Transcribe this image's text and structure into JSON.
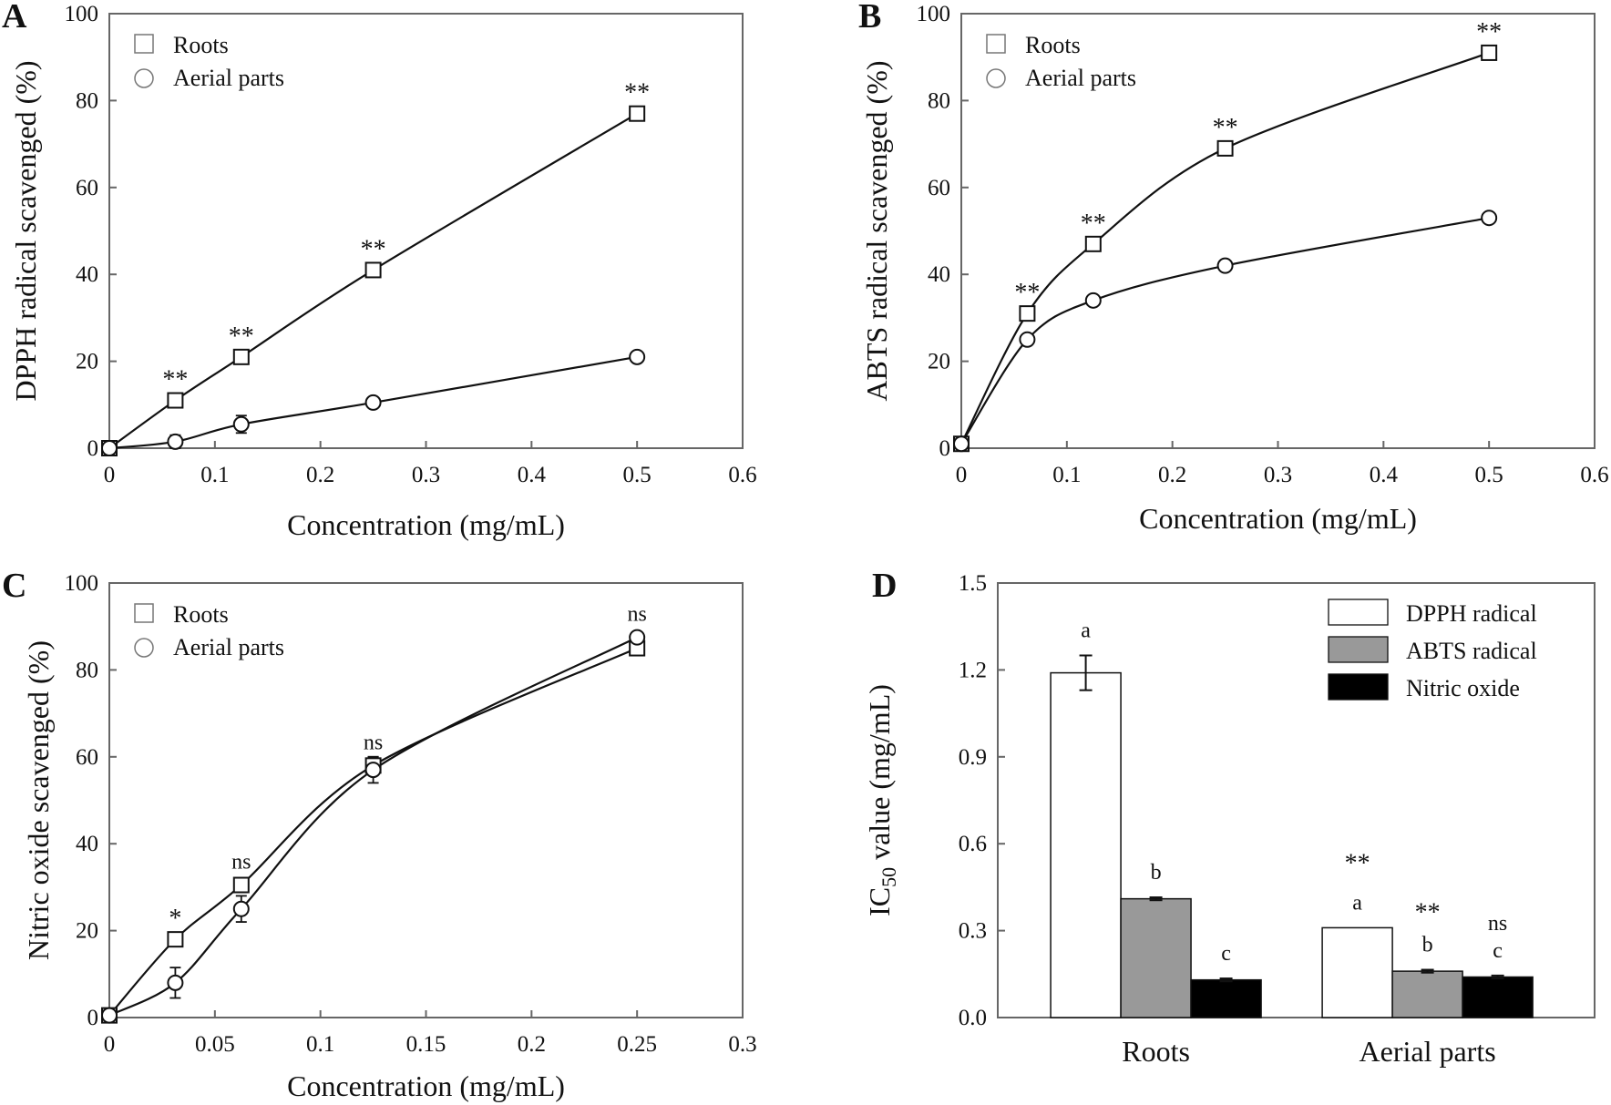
{
  "chart_data": [
    {
      "panel": "A",
      "type": "line",
      "xlabel": "Concentration (mg/mL)",
      "ylabel": "DPPH radical scavenged (%)",
      "xlim": [
        0,
        0.6
      ],
      "ylim": [
        0,
        100
      ],
      "xticks": [
        "0",
        "0.1",
        "0.2",
        "0.3",
        "0.4",
        "0.5",
        "0.6"
      ],
      "yticks": [
        "0",
        "20",
        "40",
        "60",
        "80",
        "100"
      ],
      "series": [
        {
          "name": "Roots",
          "marker": "square",
          "x": [
            0,
            0.0625,
            0.125,
            0.25,
            0.5
          ],
          "y": [
            0,
            11,
            21,
            41,
            77
          ],
          "err": [
            0,
            0.8,
            0.8,
            0.8,
            1
          ]
        },
        {
          "name": "Aerial parts",
          "marker": "circle",
          "x": [
            0,
            0.0625,
            0.125,
            0.25,
            0.5
          ],
          "y": [
            0,
            1.5,
            5.5,
            10.5,
            21
          ],
          "err": [
            0,
            1.5,
            2,
            0.8,
            1
          ]
        }
      ],
      "annotations": [
        {
          "x": 0.0625,
          "y": 11,
          "text": "**"
        },
        {
          "x": 0.125,
          "y": 21,
          "text": "**"
        },
        {
          "x": 0.25,
          "y": 41,
          "text": "**"
        },
        {
          "x": 0.5,
          "y": 77,
          "text": "**"
        }
      ]
    },
    {
      "panel": "B",
      "type": "line",
      "xlabel": "Concentration (mg/mL)",
      "ylabel": "ABTS radical scavenged (%)",
      "xlim": [
        0,
        0.6
      ],
      "ylim": [
        0,
        100
      ],
      "xticks": [
        "0",
        "0.1",
        "0.2",
        "0.3",
        "0.4",
        "0.5",
        "0.6"
      ],
      "yticks": [
        "0",
        "20",
        "40",
        "60",
        "80",
        "100"
      ],
      "series": [
        {
          "name": "Roots",
          "marker": "square",
          "x": [
            0,
            0.0625,
            0.125,
            0.25,
            0.5
          ],
          "y": [
            1,
            31,
            47,
            69,
            91
          ],
          "err": [
            0,
            0.8,
            0.8,
            0.8,
            0.8
          ]
        },
        {
          "name": "Aerial parts",
          "marker": "circle",
          "x": [
            0,
            0.0625,
            0.125,
            0.25,
            0.5
          ],
          "y": [
            1,
            25,
            34,
            42,
            53
          ],
          "err": [
            0,
            0.8,
            0.8,
            0.8,
            0.8
          ]
        }
      ],
      "annotations": [
        {
          "x": 0.0625,
          "y": 31,
          "text": "**"
        },
        {
          "x": 0.125,
          "y": 47,
          "text": "**"
        },
        {
          "x": 0.25,
          "y": 69,
          "text": "**"
        },
        {
          "x": 0.5,
          "y": 91,
          "text": "**"
        }
      ]
    },
    {
      "panel": "C",
      "type": "line",
      "xlabel": "Concentration (mg/mL)",
      "ylabel": "Nitric oxide scavenged (%)",
      "xlim": [
        0,
        0.3
      ],
      "ylim": [
        0,
        100
      ],
      "xticks": [
        "0",
        "0.05",
        "0.1",
        "0.15",
        "0.2",
        "0.25",
        "0.3"
      ],
      "yticks": [
        "0",
        "20",
        "40",
        "60",
        "80",
        "100"
      ],
      "series": [
        {
          "name": "Roots",
          "marker": "square",
          "x": [
            0,
            0.03125,
            0.0625,
            0.125,
            0.25
          ],
          "y": [
            0.5,
            18,
            30.5,
            58,
            85
          ],
          "err": [
            0,
            1,
            1.5,
            2,
            1
          ]
        },
        {
          "name": "Aerial parts",
          "marker": "circle",
          "x": [
            0,
            0.03125,
            0.0625,
            0.125,
            0.25
          ],
          "y": [
            0.5,
            8,
            25,
            57,
            87.5
          ],
          "err": [
            0,
            3.5,
            3,
            3,
            1
          ]
        }
      ],
      "annotations": [
        {
          "x": 0.03125,
          "y": 18,
          "text": "*"
        },
        {
          "x": 0.0625,
          "y": 30.5,
          "text": "ns"
        },
        {
          "x": 0.125,
          "y": 58,
          "text": "ns"
        },
        {
          "x": 0.25,
          "y": 87.5,
          "text": "ns"
        }
      ]
    },
    {
      "panel": "D",
      "type": "bar",
      "ylabel": "IC",
      "ylabel_sub": "50",
      "ylabel_rest": " value  (mg/mL)",
      "ylim": [
        0,
        1.5
      ],
      "yticks": [
        "0.0",
        "0.3",
        "0.6",
        "0.9",
        "1.2",
        "1.5"
      ],
      "categories": [
        "Roots",
        "Aerial parts"
      ],
      "series": [
        {
          "name": "DPPH radical",
          "color": "#ffffff",
          "values": [
            1.19,
            0.31
          ],
          "err": [
            0.06,
            0.0
          ],
          "letters": [
            "a",
            "a"
          ],
          "sig": [
            "",
            "**"
          ]
        },
        {
          "name": "ABTS radical",
          "color": "#999999",
          "values": [
            0.41,
            0.16
          ],
          "err": [
            0.005,
            0.005
          ],
          "letters": [
            "b",
            "b"
          ],
          "sig": [
            "",
            "**"
          ]
        },
        {
          "name": "Nitric oxide",
          "color": "#000000",
          "values": [
            0.13,
            0.14
          ],
          "err": [
            0.005,
            0.005
          ],
          "letters": [
            "c",
            "c"
          ],
          "sig": [
            "",
            "ns"
          ]
        }
      ]
    }
  ],
  "panel_labels": [
    "A",
    "B",
    "C",
    "D"
  ]
}
